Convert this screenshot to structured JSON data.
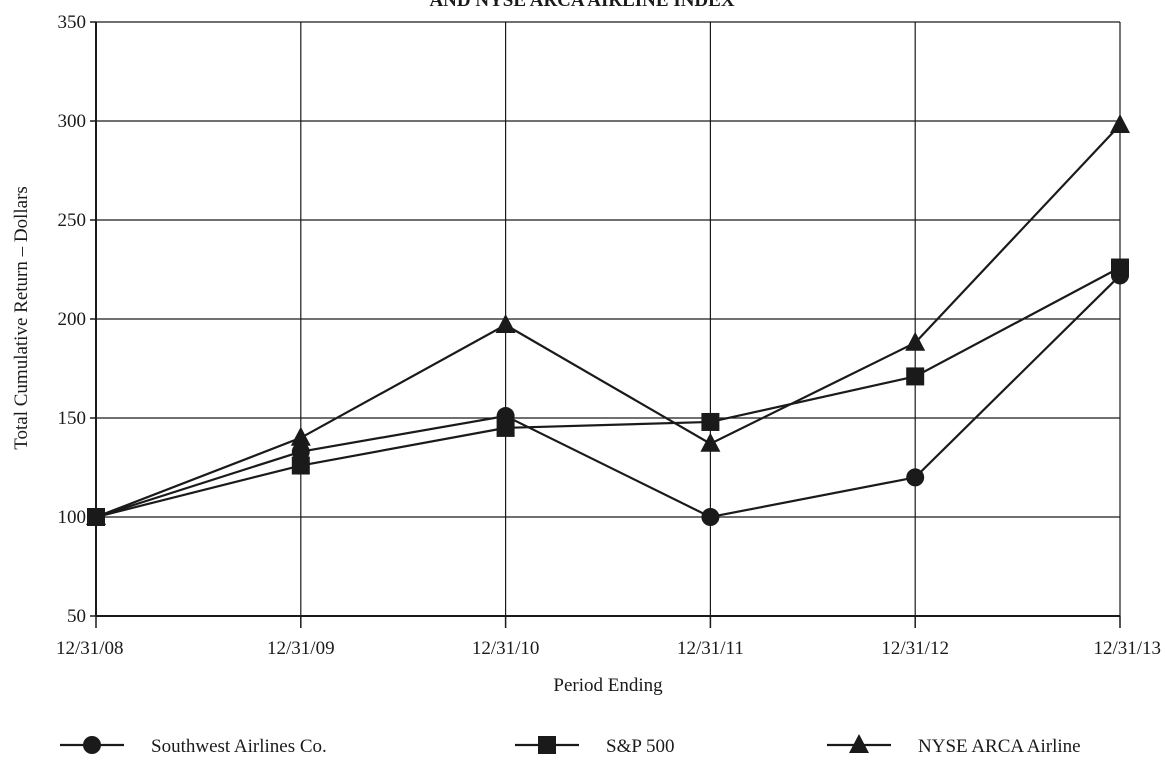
{
  "chart_data": {
    "type": "line",
    "title": "AND NYSE ARCA AIRLINE INDEX",
    "xlabel": "Period Ending",
    "ylabel": "Total Cumulative Return – Dollars",
    "categories": [
      "12/31/08",
      "12/31/09",
      "12/31/10",
      "12/31/11",
      "12/31/12",
      "12/31/13"
    ],
    "yticks": [
      50,
      100,
      150,
      200,
      250,
      300,
      350
    ],
    "ylim": [
      50,
      350
    ],
    "grid": true,
    "legend_position": "bottom",
    "series": [
      {
        "name": "Southwest Airlines Co.",
        "marker": "circle",
        "values": [
          100,
          133,
          151,
          100,
          120,
          222
        ]
      },
      {
        "name": "S&P 500",
        "marker": "square",
        "values": [
          100,
          126,
          145,
          148,
          171,
          226
        ]
      },
      {
        "name": "NYSE ARCA Airline",
        "marker": "triangle",
        "values": [
          100,
          140,
          197,
          137,
          188,
          298
        ]
      }
    ],
    "colors": {
      "line": "#1a1a1a",
      "grid": "#1a1a1a",
      "background": "#ffffff"
    }
  }
}
